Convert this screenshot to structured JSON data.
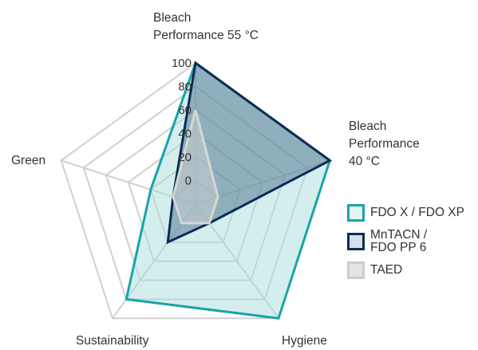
{
  "chart_data": {
    "type": "radar",
    "axes": [
      {
        "line1": "Bleach",
        "line2": "Performance 55 °C"
      },
      {
        "line1": "Bleach",
        "line2": "Performance",
        "line3": "40 °C"
      },
      {
        "line1": "Hygiene"
      },
      {
        "line1": "Sustainability"
      },
      {
        "line1": "Green"
      }
    ],
    "rmin": -20,
    "rmax": 100,
    "ticks": [
      "0",
      "20",
      "40",
      "60",
      "80",
      "100"
    ],
    "tick_values": [
      0,
      20,
      40,
      60,
      80,
      100
    ],
    "series": [
      {
        "name": "FDO X / FDO XP",
        "values": [
          100,
          100,
          100,
          80,
          20
        ],
        "stroke": "#1aa3a8",
        "fill": "#a9dede"
      },
      {
        "name": "MnTACN /\nFDO PP 6",
        "values": [
          100,
          100,
          0,
          20,
          0
        ],
        "stroke": "#0d2b56",
        "fill": "#4a6f8c"
      },
      {
        "name": "TAED",
        "values": [
          60,
          0,
          0,
          0,
          0
        ],
        "stroke": "#d6d6d6",
        "fill": "#cfcfcf"
      }
    ],
    "grid_color": "#d0d0d0"
  }
}
